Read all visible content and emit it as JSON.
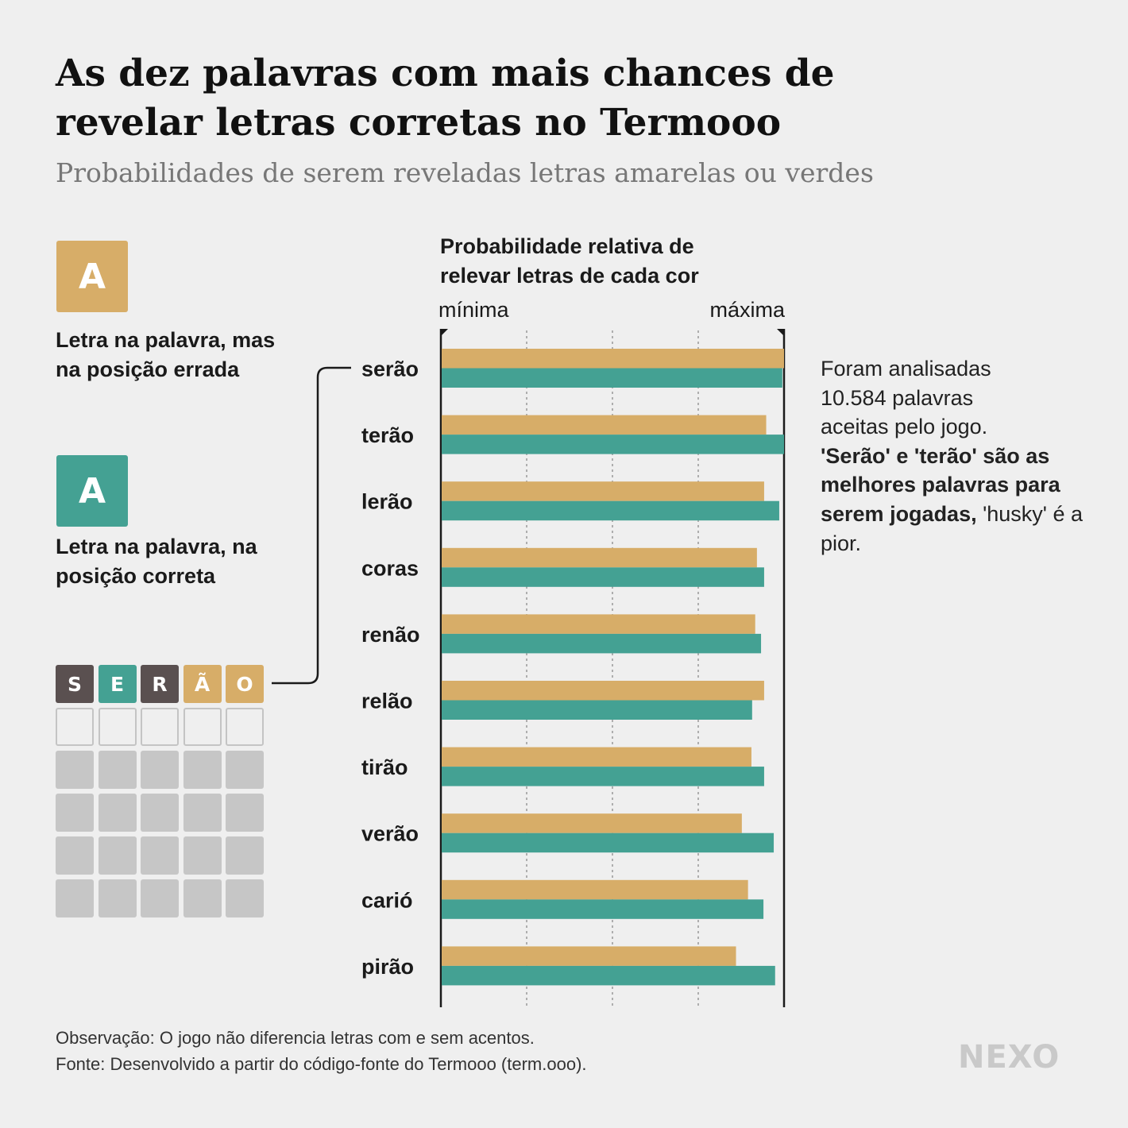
{
  "header": {
    "title": "As dez palavras com mais chances de revelar letras corretas no Termooo",
    "subtitle": "Probabilidades de serem reveladas letras amarelas ou verdes"
  },
  "legend": {
    "yellow_letter": "A",
    "yellow_text": "Letra na palavra, mas na posição errada",
    "green_letter": "A",
    "green_text": "Letra na palavra, na posição correta"
  },
  "example_grid": {
    "word": [
      {
        "letter": "S",
        "state": "absent"
      },
      {
        "letter": "E",
        "state": "correct"
      },
      {
        "letter": "R",
        "state": "absent"
      },
      {
        "letter": "Ã",
        "state": "present"
      },
      {
        "letter": "O",
        "state": "present"
      }
    ]
  },
  "colors": {
    "yellow": "#d7ad68",
    "green": "#44a193",
    "absent": "#5a5050",
    "empty_fill": "#c6c6c6"
  },
  "chart_data": {
    "type": "bar",
    "orientation": "horizontal",
    "title": "Probabilidade relativa de relevar letras de cada cor",
    "scale_min_label": "mínima",
    "scale_max_label": "máxima",
    "xlim": [
      0,
      1
    ],
    "grid": true,
    "categories": [
      "serão",
      "terão",
      "lerão",
      "coras",
      "renão",
      "relão",
      "tirão",
      "verão",
      "carió",
      "pirão"
    ],
    "series": [
      {
        "color": "#d7ad68",
        "values": [
          1.0,
          0.948,
          0.942,
          0.921,
          0.916,
          0.942,
          0.905,
          0.877,
          0.895,
          0.86
        ]
      },
      {
        "color": "#44a193",
        "values": [
          0.995,
          1.0,
          0.986,
          0.942,
          0.933,
          0.907,
          0.942,
          0.97,
          0.94,
          0.974
        ]
      }
    ]
  },
  "note": {
    "line1": "Foram analisadas",
    "line2": "10.584 palavras",
    "line3": "aceitas pelo jogo.",
    "bold": "'Serão' e 'terão' são as melhores palavras para serem jogadas,",
    "end": "'husky' é a pior."
  },
  "footer": {
    "observation": "Observação: O jogo não diferencia letras com e sem acentos.",
    "source": "Fonte: Desenvolvido a partir do código-fonte do Termooo (term.ooo)."
  },
  "brand": "NEXO"
}
